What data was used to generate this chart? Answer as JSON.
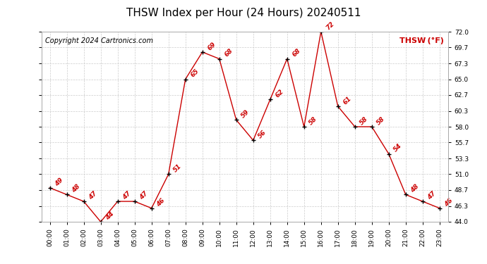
{
  "title": "THSW Index per Hour (24 Hours) 20240511",
  "copyright": "Copyright 2024 Cartronics.com",
  "legend_label": "THSW (°F)",
  "hours": [
    0,
    1,
    2,
    3,
    4,
    5,
    6,
    7,
    8,
    9,
    10,
    11,
    12,
    13,
    14,
    15,
    16,
    17,
    18,
    19,
    20,
    21,
    22,
    23
  ],
  "values": [
    49,
    48,
    47,
    44,
    47,
    47,
    46,
    51,
    65,
    69,
    68,
    59,
    56,
    62,
    68,
    58,
    72,
    61,
    58,
    58,
    54,
    48,
    47,
    46
  ],
  "ylim": [
    44.0,
    72.0
  ],
  "yticks": [
    44.0,
    46.3,
    48.7,
    51.0,
    53.3,
    55.7,
    58.0,
    60.3,
    62.7,
    65.0,
    67.3,
    69.7,
    72.0
  ],
  "line_color": "#cc0000",
  "marker_color": "#000000",
  "label_color": "#cc0000",
  "copyright_color": "#000000",
  "legend_color": "#cc0000",
  "bg_color": "#ffffff",
  "grid_color": "#cccccc",
  "title_fontsize": 11,
  "label_fontsize": 6.5,
  "tick_fontsize": 6.5,
  "copyright_fontsize": 7
}
